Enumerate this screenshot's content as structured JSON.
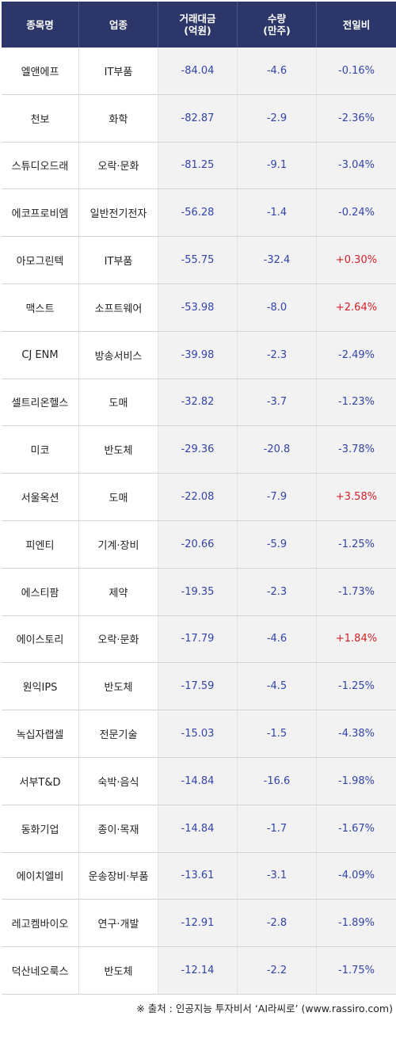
{
  "header": {
    "col1": "종목명",
    "col2": "업종",
    "col3_line1": "거래대금",
    "col3_line2": "(억원)",
    "col4_line1": "수량",
    "col4_line2": "(만주)",
    "col5": "전일비"
  },
  "rows": [
    {
      "name": "엘앤에프",
      "sector": "IT부품",
      "amount": "-84.04",
      "qty": "-4.6",
      "change": "-0.16%"
    },
    {
      "name": "천보",
      "sector": "화학",
      "amount": "-82.87",
      "qty": "-2.9",
      "change": "-2.36%"
    },
    {
      "name": "스튜디오드래",
      "sector": "오락·문화",
      "amount": "-81.25",
      "qty": "-9.1",
      "change": "-3.04%"
    },
    {
      "name": "에코프로비엠",
      "sector": "일반전기전자",
      "amount": "-56.28",
      "qty": "-1.4",
      "change": "-0.24%"
    },
    {
      "name": "아모그린텍",
      "sector": "IT부품",
      "amount": "-55.75",
      "qty": "-32.4",
      "change": "+0.30%"
    },
    {
      "name": "맥스트",
      "sector": "소프트웨어",
      "amount": "-53.98",
      "qty": "-8.0",
      "change": "+2.64%"
    },
    {
      "name": "CJ ENM",
      "sector": "방송서비스",
      "amount": "-39.98",
      "qty": "-2.3",
      "change": "-2.49%"
    },
    {
      "name": "셀트리온헬스",
      "sector": "도매",
      "amount": "-32.82",
      "qty": "-3.7",
      "change": "-1.23%"
    },
    {
      "name": "미코",
      "sector": "반도체",
      "amount": "-29.36",
      "qty": "-20.8",
      "change": "-3.78%"
    },
    {
      "name": "서울옥션",
      "sector": "도매",
      "amount": "-22.08",
      "qty": "-7.9",
      "change": "+3.58%"
    },
    {
      "name": "피엔티",
      "sector": "기계·장비",
      "amount": "-20.66",
      "qty": "-5.9",
      "change": "-1.25%"
    },
    {
      "name": "에스티팜",
      "sector": "제약",
      "amount": "-19.35",
      "qty": "-2.3",
      "change": "-1.73%"
    },
    {
      "name": "에이스토리",
      "sector": "오락·문화",
      "amount": "-17.79",
      "qty": "-4.6",
      "change": "+1.84%"
    },
    {
      "name": "원익IPS",
      "sector": "반도체",
      "amount": "-17.59",
      "qty": "-4.5",
      "change": "-1.25%"
    },
    {
      "name": "녹십자랩셀",
      "sector": "전문기술",
      "amount": "-15.03",
      "qty": "-1.5",
      "change": "-4.38%"
    },
    {
      "name": "서부T&D",
      "sector": "숙박·음식",
      "amount": "-14.84",
      "qty": "-16.6",
      "change": "-1.98%"
    },
    {
      "name": "동화기업",
      "sector": "종이·목재",
      "amount": "-14.84",
      "qty": "-1.7",
      "change": "-1.67%"
    },
    {
      "name": "에이치엘비",
      "sector": "운송장비·부품",
      "amount": "-13.61",
      "qty": "-3.1",
      "change": "-4.09%"
    },
    {
      "name": "레고켐바이오",
      "sector": "연구·개발",
      "amount": "-12.91",
      "qty": "-2.8",
      "change": "-1.89%"
    },
    {
      "name": "덕산네오룩스",
      "sector": "반도체",
      "amount": "-12.14",
      "qty": "-2.2",
      "change": "-1.75%"
    }
  ],
  "footer": {
    "source": "※ 출처 : 인공지능 투자비서 ‘AI라씨로’ (www.rassiro.com)"
  },
  "colors": {
    "header_bg": "#2c3668",
    "negative": "#3344a8",
    "positive": "#d4202a"
  }
}
